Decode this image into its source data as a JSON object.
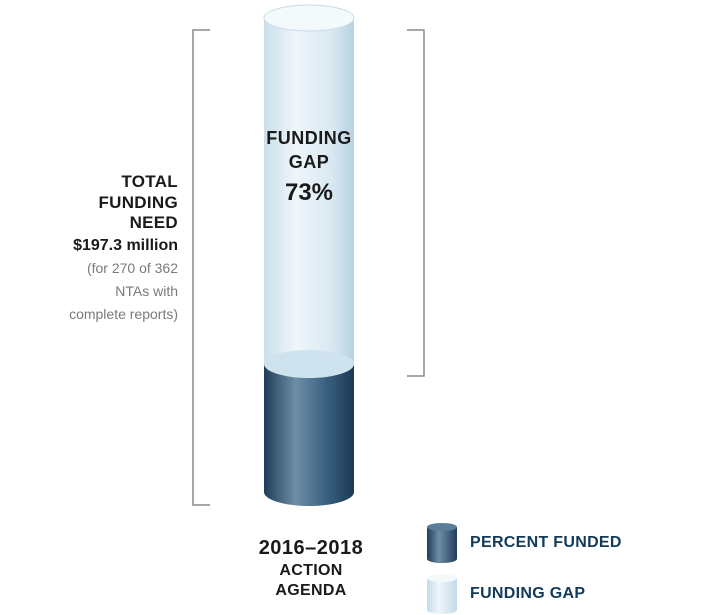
{
  "chart_data": {
    "type": "bar",
    "categories": [
      "2016–2018 ACTION AGENDA"
    ],
    "series": [
      {
        "name": "PERCENT FUNDED",
        "values": [
          27
        ],
        "color": "#2f5572"
      },
      {
        "name": "FUNDING GAP",
        "values": [
          73
        ],
        "color": "#d6e8f2"
      }
    ],
    "stacked": true,
    "unit": "%",
    "ylim": [
      0,
      100
    ],
    "legend": "bottom-right"
  },
  "total_need": {
    "title_lines": [
      "TOTAL",
      "FUNDING",
      "NEED"
    ],
    "amount": "$197.3 million",
    "note_lines": [
      "(for 270 of 362",
      "NTAs with",
      "complete reports)"
    ]
  },
  "gap_label": {
    "lines": [
      "FUNDING",
      "GAP"
    ],
    "percent": "73%"
  },
  "category_label": {
    "years": "2016–2018",
    "lines": [
      "ACTION",
      "AGENDA"
    ]
  },
  "legend": [
    {
      "label": "PERCENT FUNDED",
      "icon": "dark-cylinder-swatch"
    },
    {
      "label": "FUNDING GAP",
      "icon": "light-cylinder-swatch"
    }
  ],
  "colors": {
    "funded_dark": "#2f5572",
    "funded_light": "#6f8fa8",
    "gap_light": "#e8f2f8",
    "gap_mid": "#c5dde9",
    "bracket": "#8a8a8a",
    "legend_text": "#123a5a"
  }
}
